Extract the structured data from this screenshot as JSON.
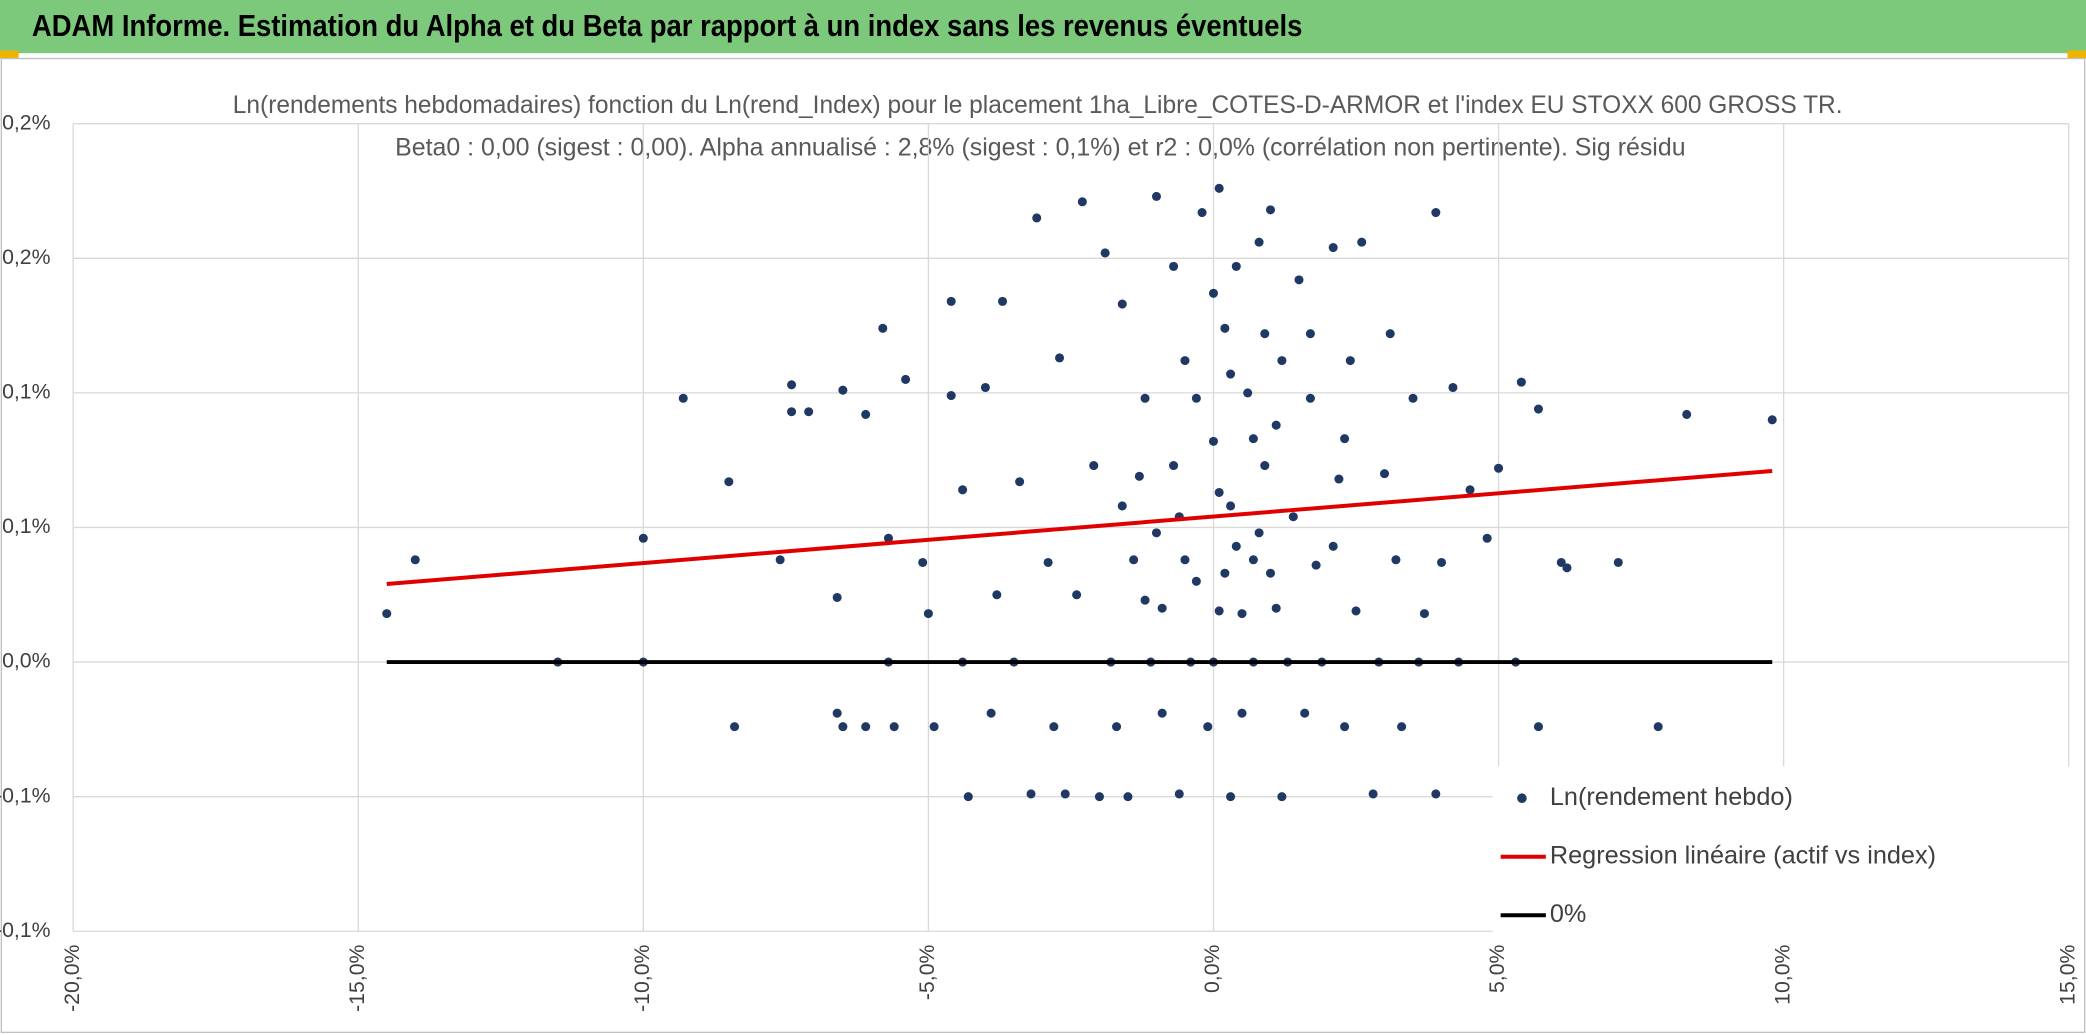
{
  "header": {
    "title": "ADAM Informe. Estimation du Alpha et du Beta par rapport à un index sans les revenus éventuels"
  },
  "chart_data": {
    "type": "scatter",
    "title": "Ln(rendements hebdomadaires) fonction du Ln(rend_Index) pour le placement 1ha_Libre_COTES-D-ARMOR et l'index EU STOXX 600 GROSS TR.",
    "subtitle": "Beta0 : 0,00 (sigest : 0,00). Alpha annualisé : 2,8% (sigest : 0,1%) et r2 : 0,0% (corrélation non pertinente). Sig résidu",
    "xlim": [
      -20,
      15
    ],
    "xticks": [
      {
        "value": -20,
        "label": "-20,0%"
      },
      {
        "value": -15,
        "label": "-15,0%"
      },
      {
        "value": -10,
        "label": "-10,0%"
      },
      {
        "value": -5,
        "label": "-5,0%"
      },
      {
        "value": 0,
        "label": "0,0%"
      },
      {
        "value": 5,
        "label": "5,0%"
      },
      {
        "value": 10,
        "label": "10,0%"
      },
      {
        "value": 15,
        "label": "15,0%"
      }
    ],
    "ylim": [
      -0.1,
      0.2
    ],
    "yticks": [
      {
        "value": 0.2,
        "label": "0,2%"
      },
      {
        "value": 0.15,
        "label": "0,2%"
      },
      {
        "value": 0.1,
        "label": "0,1%"
      },
      {
        "value": 0.05,
        "label": "0,1%"
      },
      {
        "value": 0,
        "label": "0,0%"
      },
      {
        "value": -0.05,
        "label": "-0,1%"
      },
      {
        "value": -0.1,
        "label": "-0,1%"
      }
    ],
    "grid": true,
    "legend": "bottom-right",
    "series": [
      {
        "name": "Ln(rendement hebdo)",
        "color": "#203864",
        "type": "scatter",
        "x": [
          -14.5,
          -14.0,
          -11.5,
          -10.0,
          -10.0,
          -9.3,
          -8.5,
          -8.4,
          -7.6,
          -7.4,
          -7.4,
          -7.1,
          -6.6,
          -6.6,
          -6.5,
          -6.5,
          -6.1,
          -6.1,
          -5.8,
          -5.7,
          -5.7,
          -5.6,
          -5.4,
          -5.1,
          -5.0,
          -4.9,
          -4.6,
          -4.6,
          -4.4,
          -4.4,
          -4.3,
          -4.0,
          -3.9,
          -3.8,
          -3.7,
          -3.5,
          -3.4,
          -3.2,
          -3.1,
          -2.9,
          -2.8,
          -2.7,
          -2.6,
          -2.4,
          -2.3,
          -2.1,
          -2.0,
          -1.9,
          -1.8,
          -1.7,
          -1.6,
          -1.5,
          -1.4,
          -1.3,
          -1.2,
          -1.1,
          -1.0,
          -0.9,
          -0.9,
          -0.7,
          -0.6,
          -0.6,
          -0.5,
          -0.4,
          -0.3,
          -0.2,
          -0.1,
          0,
          0,
          0.1,
          0.1,
          0.2,
          0.3,
          0.3,
          0.4,
          0.5,
          0.6,
          0.7,
          0.7,
          0.8,
          0.9,
          1.0,
          1.1,
          1.2,
          1.2,
          1.3,
          1.4,
          1.5,
          1.6,
          1.7,
          1.8,
          1.9,
          2.1,
          2.2,
          2.3,
          2.4,
          2.5,
          2.6,
          2.8,
          2.9,
          3.0,
          3.1,
          3.2,
          3.3,
          3.5,
          3.6,
          3.7,
          3.9,
          3.9,
          4.0,
          4.2,
          4.3,
          4.5,
          4.8,
          5.0,
          5.0,
          5.3,
          5.4,
          5.7,
          5.7,
          6.1,
          6.2,
          7.1,
          7.8,
          8.3,
          9.8,
          0.2,
          0.4,
          -0.3,
          0.7,
          0.9,
          0,
          0.5,
          0.8,
          1.1,
          -0.5,
          -0.7,
          0.3,
          0.1,
          1.0,
          -1.0,
          1.7,
          2.1,
          -1.2,
          -1.6,
          2.3
        ],
        "values": [
          0.018,
          0.038,
          0,
          0.046,
          0,
          0.098,
          0.067,
          -0.024,
          0.038,
          0.103,
          0.093,
          0.093,
          0.024,
          -0.019,
          0.101,
          -0.024,
          0.092,
          -0.024,
          0.124,
          0,
          0.046,
          -0.024,
          0.105,
          0.037,
          0.018,
          -0.024,
          0.134,
          0.099,
          0,
          0.064,
          -0.05,
          0.102,
          -0.019,
          0.025,
          0.134,
          0,
          0.067,
          -0.049,
          0.165,
          0.037,
          -0.024,
          0.113,
          -0.049,
          0.025,
          0.171,
          0.073,
          -0.05,
          0.152,
          0,
          -0.024,
          0.133,
          -0.05,
          0.038,
          0.069,
          0.098,
          0,
          0.173,
          0.02,
          -0.019,
          0.147,
          0.054,
          -0.049,
          0.112,
          0,
          0.03,
          0.167,
          -0.024,
          0.082,
          0,
          0.176,
          0.019,
          0.124,
          -0.05,
          0.058,
          0.147,
          -0.019,
          0.1,
          0.038,
          0,
          0.156,
          0.073,
          0.168,
          0.02,
          0.112,
          -0.05,
          0,
          0.054,
          0.142,
          -0.019,
          0.098,
          0.036,
          0,
          0.154,
          0.068,
          -0.024,
          0.112,
          0.019,
          0.156,
          -0.049,
          0,
          0.07,
          0.122,
          0.038,
          -0.024,
          0.098,
          0,
          0.018,
          0.167,
          -0.049,
          0.037,
          0.102,
          0,
          0.064,
          0.046,
          0.072,
          -0.049,
          0,
          0.104,
          -0.024,
          0.094,
          0.037,
          0.035,
          0.037,
          -0.024,
          0.092,
          0.09,
          0.033,
          0.043,
          0.098,
          0.083,
          0.122,
          0.137,
          0.018,
          0.048,
          0.088,
          0.038,
          0.073,
          0.107,
          0.063,
          0.033,
          0.048,
          0.122,
          0.043,
          0.023,
          0.058,
          0.083
        ]
      },
      {
        "name": "Regression linéaire (actif vs index)",
        "color": "#e00000",
        "type": "line",
        "x": [
          -14.5,
          9.8
        ],
        "values": [
          0.029,
          0.071
        ]
      },
      {
        "name": "0%",
        "color": "#000000",
        "type": "line",
        "x": [
          -14.5,
          9.8
        ],
        "values": [
          0,
          0
        ]
      }
    ]
  }
}
